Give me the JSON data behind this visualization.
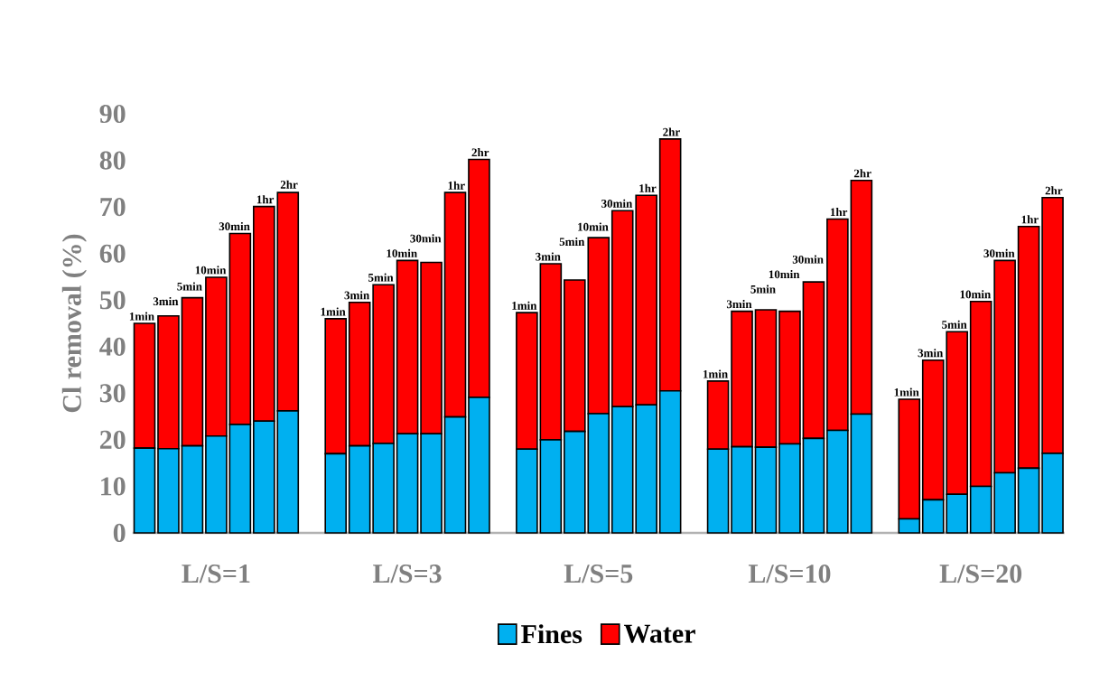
{
  "chart_data": {
    "type": "bar",
    "ylabel": "Cl removal (%)",
    "stacked": true,
    "legend": "bottom",
    "ylim": [
      0,
      90
    ],
    "yticks": [
      0,
      10,
      20,
      30,
      40,
      50,
      60,
      70,
      80,
      90
    ],
    "categories": [
      null,
      null,
      null,
      null,
      null,
      null,
      null,
      null,
      null,
      null,
      null,
      null,
      null,
      null,
      null,
      null,
      null,
      null,
      null,
      null,
      null,
      null,
      null,
      null,
      null,
      null,
      null,
      null,
      null,
      null,
      null,
      null,
      null,
      null,
      null,
      null,
      null,
      null,
      null
    ],
    "series": [
      {
        "name": "Fines",
        "color": "#00b0f0",
        "values": [
          18.2,
          18.1,
          18.7,
          20.8,
          23.3,
          24.0,
          26.2,
          null,
          17.0,
          18.7,
          19.2,
          21.3,
          21.3,
          24.9,
          29.1,
          null,
          18.0,
          20.0,
          21.8,
          25.6,
          27.1,
          27.5,
          30.5,
          null,
          18.0,
          18.5,
          18.4,
          19.1,
          20.3,
          22.0,
          25.5,
          null,
          3.0,
          7.1,
          8.3,
          10.0,
          12.9,
          13.9,
          17.1
        ]
      },
      {
        "name": "Water",
        "color": "#ff0000",
        "values": [
          26.8,
          28.5,
          31.8,
          34.1,
          41.0,
          46.1,
          46.9,
          null,
          29.0,
          30.8,
          34.1,
          37.2,
          36.8,
          48.2,
          51.1,
          null,
          29.3,
          37.8,
          32.5,
          37.8,
          42.1,
          45.0,
          54.1,
          null,
          14.6,
          29.1,
          29.5,
          28.5,
          33.6,
          45.4,
          50.2,
          null,
          25.7,
          30.0,
          34.9,
          39.7,
          45.6,
          51.9,
          54.9
        ]
      }
    ],
    "annotations": [
      "L/S=1",
      "L/S=3",
      "L/S=5",
      "L/S=10",
      "L/S=20",
      {
        "text": "1min",
        "y": 45.0
      },
      {
        "text": "3min",
        "y": 46.6
      },
      {
        "text": "5min",
        "y": 50.5
      },
      {
        "text": "10min",
        "y": 54.9
      },
      {
        "text": "30min",
        "y": 64.3
      },
      {
        "text": "1hr",
        "y": 70.1
      },
      {
        "text": "2hr",
        "y": 73.1
      },
      {
        "text": "1min",
        "y": 46.0
      },
      {
        "text": "3min",
        "y": 49.5
      },
      {
        "text": "5min",
        "y": 53.3
      },
      {
        "text": "10min",
        "y": 58.5
      },
      {
        "text": "30min",
        "y": 58.1
      },
      {
        "text": "1hr",
        "y": 73.1
      },
      {
        "text": "2hr",
        "y": 80.2
      },
      {
        "text": "1min",
        "y": 47.3
      },
      {
        "text": "3min",
        "y": 57.8
      },
      {
        "text": "5min",
        "y": 54.3
      },
      {
        "text": "10min",
        "y": 63.4
      },
      {
        "text": "30min",
        "y": 69.2
      },
      {
        "text": "1hr",
        "y": 72.5
      },
      {
        "text": "2hr",
        "y": 84.6
      },
      {
        "text": "1min",
        "y": 32.6
      },
      {
        "text": "3min",
        "y": 47.6
      },
      {
        "text": "5min",
        "y": 47.9
      },
      {
        "text": "10min",
        "y": 47.6
      },
      {
        "text": "30min",
        "y": 53.9
      },
      {
        "text": "1hr",
        "y": 67.4
      },
      {
        "text": "2hr",
        "y": 75.7
      },
      {
        "text": "1min",
        "y": 28.7
      },
      {
        "text": "3min",
        "y": 37.1
      },
      {
        "text": "5min",
        "y": 43.2
      },
      {
        "text": "10min",
        "y": 49.7
      },
      {
        "text": "30min",
        "y": 58.5
      },
      {
        "text": "1hr",
        "y": 65.8
      },
      {
        "text": "2hr",
        "y": 72.0
      }
    ]
  }
}
